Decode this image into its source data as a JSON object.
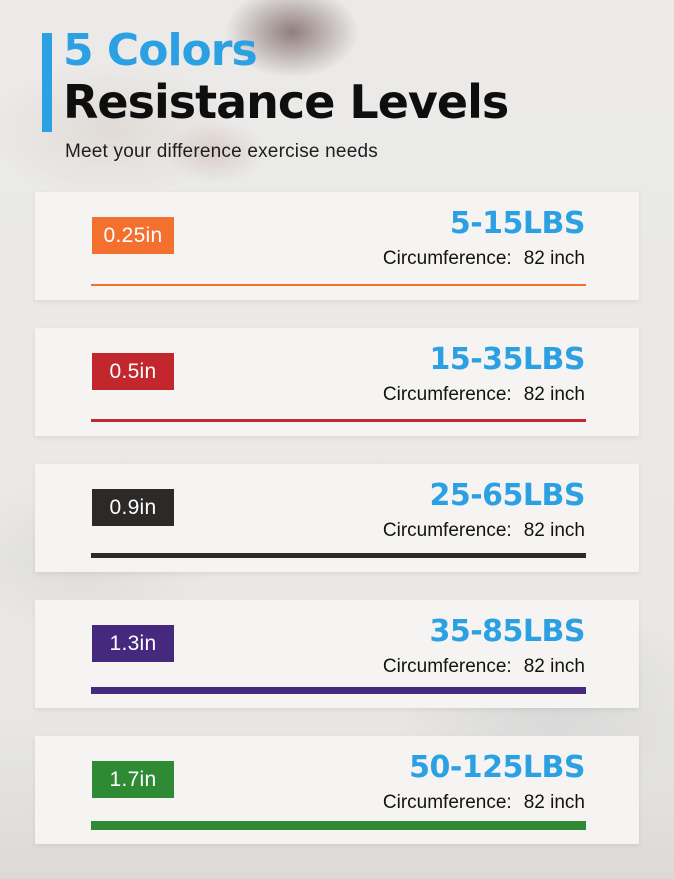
{
  "colors": {
    "accent_blue": "#2BA0E2",
    "page_bg": "#E9E8E6",
    "card_bg": "#F5F4F2",
    "text_dark": "#121212"
  },
  "header": {
    "title_accent": "5 Colors",
    "title_main": "Resistance Levels",
    "subtitle": "Meet your difference exercise needs"
  },
  "cards": [
    {
      "band_width": "0.25in",
      "weight_range": "5-15LBS",
      "circumference_label": "Circumference:",
      "circumference_value": "82 inch",
      "color": "#F4702E",
      "line_thickness": "2px"
    },
    {
      "band_width": "0.5in",
      "weight_range": "15-35LBS",
      "circumference_label": "Circumference:",
      "circumference_value": "82 inch",
      "color": "#C1272D",
      "line_thickness": "3px"
    },
    {
      "band_width": "0.9in",
      "weight_range": "25-65LBS",
      "circumference_label": "Circumference:",
      "circumference_value": "82 inch",
      "color": "#2B2A28",
      "line_thickness": "5px"
    },
    {
      "band_width": "1.3in",
      "weight_range": "35-85LBS",
      "circumference_label": "Circumference:",
      "circumference_value": "82 inch",
      "color": "#44297E",
      "line_thickness": "7px"
    },
    {
      "band_width": "1.7in",
      "weight_range": "50-125LBS",
      "circumference_label": "Circumference:",
      "circumference_value": "82 inch",
      "color": "#2E8B34",
      "line_thickness": "9px"
    }
  ]
}
